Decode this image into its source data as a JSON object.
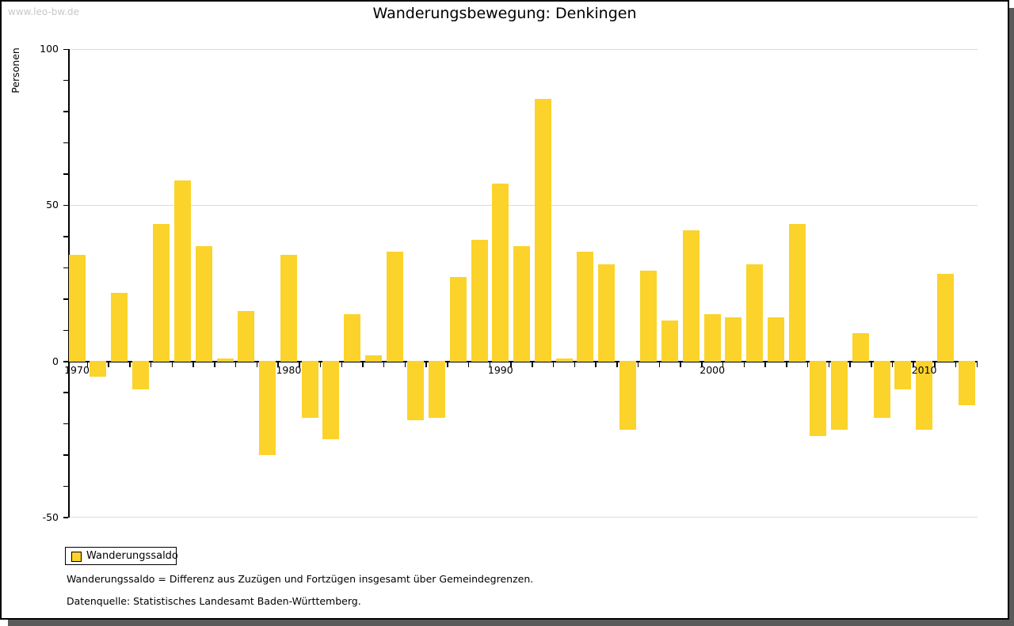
{
  "watermark": "www.leo-bw.de",
  "chart_data": {
    "type": "bar",
    "title": "Wanderungsbewegung: Denkingen",
    "ylabel": "Personen",
    "xlabel": "",
    "series_name": "Wanderungssaldo",
    "years": [
      1970,
      1971,
      1972,
      1973,
      1974,
      1975,
      1976,
      1977,
      1978,
      1979,
      1980,
      1981,
      1982,
      1983,
      1984,
      1985,
      1986,
      1987,
      1988,
      1989,
      1990,
      1991,
      1992,
      1993,
      1994,
      1995,
      1996,
      1997,
      1998,
      1999,
      2000,
      2001,
      2002,
      2003,
      2004,
      2005,
      2006,
      2007,
      2008,
      2009,
      2010,
      2011,
      2012
    ],
    "values": [
      34,
      -5,
      22,
      -9,
      44,
      58,
      37,
      1,
      16,
      -30,
      34,
      -18,
      -25,
      15,
      2,
      35,
      -19,
      -18,
      27,
      39,
      57,
      37,
      84,
      1,
      35,
      31,
      -22,
      29,
      13,
      42,
      15,
      14,
      31,
      14,
      44,
      -24,
      -22,
      9,
      -18,
      -9,
      -22,
      28,
      -14
    ],
    "ylim": [
      -50,
      100
    ],
    "ytick_major": [
      100,
      50,
      0,
      -50
    ],
    "ytick_minor_step": 10,
    "xtick_labels": [
      1970,
      1980,
      1990,
      2000,
      2010
    ],
    "grid": "horizontal light gridlines at 100, 50 and -50; black zero axis",
    "legend_position": "bottom-left",
    "bar_color": "#FBD32B"
  },
  "legend": {
    "label": "Wanderungssaldo",
    "swatch_color": "#FBD32B"
  },
  "footnotes": [
    "Wanderungssaldo = Differenz aus Zuzügen und Fortzügen insgesamt über Gemeindegrenzen.",
    "Datenquelle: Statistisches Landesamt Baden-Württemberg."
  ],
  "colors": {
    "bar": "#FBD32B",
    "grid": "#dcdcdc",
    "axis": "#000000",
    "watermark": "#c8c8c8",
    "shadow": "#5a5a5a",
    "background": "#ffffff"
  }
}
